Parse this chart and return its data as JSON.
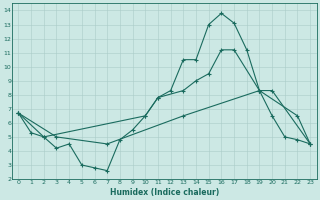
{
  "xlabel": "Humidex (Indice chaleur)",
  "xlim": [
    -0.5,
    23.5
  ],
  "ylim": [
    2,
    14.5
  ],
  "xticks": [
    0,
    1,
    2,
    3,
    4,
    5,
    6,
    7,
    8,
    9,
    10,
    11,
    12,
    13,
    14,
    15,
    16,
    17,
    18,
    19,
    20,
    21,
    22,
    23
  ],
  "yticks": [
    2,
    3,
    4,
    5,
    6,
    7,
    8,
    9,
    10,
    11,
    12,
    13,
    14
  ],
  "bg_color": "#cce8e4",
  "line_color": "#1a6b5e",
  "grid_color": "#aaccc8",
  "font_color": "#1a6b5e",
  "line1_x": [
    0,
    1,
    2,
    3,
    4,
    5,
    6,
    7,
    8,
    9,
    10,
    11,
    12,
    13,
    14,
    15,
    16,
    17,
    18,
    19,
    20,
    21,
    22,
    23
  ],
  "line1_y": [
    6.7,
    5.3,
    5.0,
    4.2,
    4.5,
    3.0,
    2.8,
    2.6,
    4.8,
    5.5,
    6.5,
    7.8,
    8.3,
    10.5,
    10.5,
    13.0,
    13.8,
    13.1,
    11.2,
    8.3,
    6.5,
    5.0,
    4.8,
    4.5
  ],
  "line2_x": [
    0,
    2,
    10,
    11,
    13,
    14,
    15,
    16,
    17,
    19,
    20,
    23
  ],
  "line2_y": [
    6.7,
    5.0,
    6.5,
    7.8,
    8.3,
    9.0,
    9.5,
    11.2,
    11.2,
    8.3,
    8.3,
    4.5
  ],
  "line3_x": [
    0,
    3,
    7,
    13,
    19,
    22,
    23
  ],
  "line3_y": [
    6.7,
    5.0,
    4.5,
    6.5,
    8.3,
    6.5,
    4.5
  ]
}
